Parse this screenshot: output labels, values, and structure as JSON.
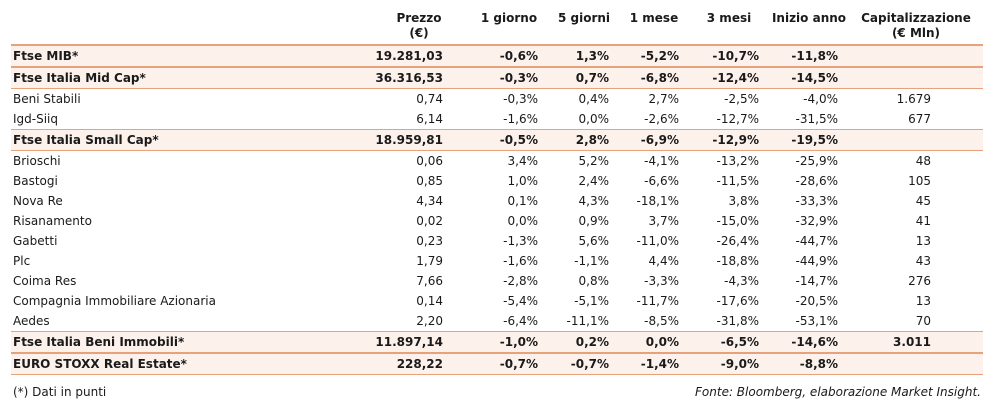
{
  "headers": {
    "prezzo": "Prezzo",
    "prezzo_unit": "(€)",
    "d1": "1 giorno",
    "d5": "5 giorni",
    "m1": "1 mese",
    "m3": "3 mesi",
    "ytd": "Inizio anno",
    "cap": "Capitalizzazione",
    "cap_unit": "(€ Mln)"
  },
  "rows": [
    {
      "name": "Ftse MIB*",
      "price": "19.281,03",
      "d1": "-0,6%",
      "d5": "1,3%",
      "m1": "-5,2%",
      "m3": "-10,7%",
      "ytd": "-11,8%",
      "cap": "",
      "bold": true
    },
    {
      "name": "Ftse Italia Mid Cap*",
      "price": "36.316,53",
      "d1": "-0,3%",
      "d5": "0,7%",
      "m1": "-6,8%",
      "m3": "-12,4%",
      "ytd": "-14,5%",
      "cap": "",
      "bold": true
    },
    {
      "name": "Beni Stabili",
      "price": "0,74",
      "d1": "-0,3%",
      "d5": "0,4%",
      "m1": "2,7%",
      "m3": "-2,5%",
      "ytd": "-4,0%",
      "cap": "1.679",
      "bold": false
    },
    {
      "name": "Igd-Siiq",
      "price": "6,14",
      "d1": "-1,6%",
      "d5": "0,0%",
      "m1": "-2,6%",
      "m3": "-12,7%",
      "ytd": "-31,5%",
      "cap": "677",
      "bold": false
    },
    {
      "name": "Ftse Italia Small Cap*",
      "price": "18.959,81",
      "d1": "-0,5%",
      "d5": "2,8%",
      "m1": "-6,9%",
      "m3": "-12,9%",
      "ytd": "-19,5%",
      "cap": "",
      "bold": true
    },
    {
      "name": "Brioschi",
      "price": "0,06",
      "d1": "3,4%",
      "d5": "5,2%",
      "m1": "-4,1%",
      "m3": "-13,2%",
      "ytd": "-25,9%",
      "cap": "48",
      "bold": false
    },
    {
      "name": "Bastogi",
      "price": "0,85",
      "d1": "1,0%",
      "d5": "2,4%",
      "m1": "-6,6%",
      "m3": "-11,5%",
      "ytd": "-28,6%",
      "cap": "105",
      "bold": false
    },
    {
      "name": "Nova Re",
      "price": "4,34",
      "d1": "0,1%",
      "d5": "4,3%",
      "m1": "-18,1%",
      "m3": "3,8%",
      "ytd": "-33,3%",
      "cap": "45",
      "bold": false
    },
    {
      "name": "Risanamento",
      "price": "0,02",
      "d1": "0,0%",
      "d5": "0,9%",
      "m1": "3,7%",
      "m3": "-15,0%",
      "ytd": "-32,9%",
      "cap": "41",
      "bold": false
    },
    {
      "name": "Gabetti",
      "price": "0,23",
      "d1": "-1,3%",
      "d5": "5,6%",
      "m1": "-11,0%",
      "m3": "-26,4%",
      "ytd": "-44,7%",
      "cap": "13",
      "bold": false
    },
    {
      "name": "Plc",
      "price": "1,79",
      "d1": "-1,6%",
      "d5": "-1,1%",
      "m1": "4,4%",
      "m3": "-18,8%",
      "ytd": "-44,9%",
      "cap": "43",
      "bold": false
    },
    {
      "name": "Coima Res",
      "price": "7,66",
      "d1": "-2,8%",
      "d5": "0,8%",
      "m1": "-3,3%",
      "m3": "-4,3%",
      "ytd": "-14,7%",
      "cap": "276",
      "bold": false
    },
    {
      "name": "Compagnia Immobiliare Azionaria",
      "price": "0,14",
      "d1": "-5,4%",
      "d5": "-5,1%",
      "m1": "-11,7%",
      "m3": "-17,6%",
      "ytd": "-20,5%",
      "cap": "13",
      "bold": false
    },
    {
      "name": "Aedes",
      "price": "2,20",
      "d1": "-6,4%",
      "d5": "-11,1%",
      "m1": "-8,5%",
      "m3": "-31,8%",
      "ytd": "-53,1%",
      "cap": "70",
      "bold": false
    },
    {
      "name": "Ftse Italia Beni Immobili*",
      "price": "11.897,14",
      "d1": "-1,0%",
      "d5": "0,2%",
      "m1": "0,0%",
      "m3": "-6,5%",
      "ytd": "-14,6%",
      "cap": "3.011",
      "bold": true
    },
    {
      "name": "EURO STOXX Real Estate*",
      "price": "228,22",
      "d1": "-0,7%",
      "d5": "-0,7%",
      "m1": "-1,4%",
      "m3": "-9,0%",
      "ytd": "-8,8%",
      "cap": "",
      "bold": true
    }
  ],
  "footer": {
    "note": "(*) Dati in punti",
    "source": "Fonte: Bloomberg, elaborazione Market Insight."
  }
}
